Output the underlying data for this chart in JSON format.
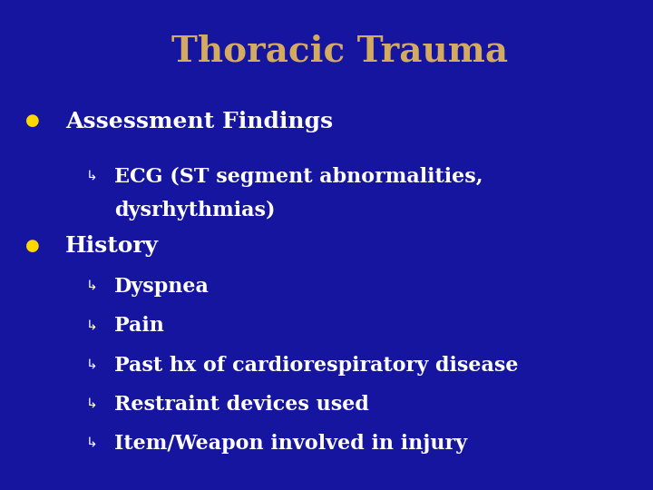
{
  "title": "Thoracic Trauma",
  "title_color": "#D4AA60",
  "title_fontsize": 28,
  "bg_color": "#1515a0",
  "text_color": "#ffffff",
  "bullet_color": "#FFD700",
  "bullet1": "Assessment Findings",
  "bullet1_sub_line1": "ECG (ST segment abnormalities,",
  "bullet1_sub_line2": "dysrhythmias)",
  "bullet2": "History",
  "bullet2_sub": [
    "Dyspnea",
    "Pain",
    "Past hx of cardiorespiratory disease",
    "Restraint devices used",
    "Item/Weapon involved in injury"
  ],
  "font_family": "serif",
  "arc_color": "#a0a8b8"
}
